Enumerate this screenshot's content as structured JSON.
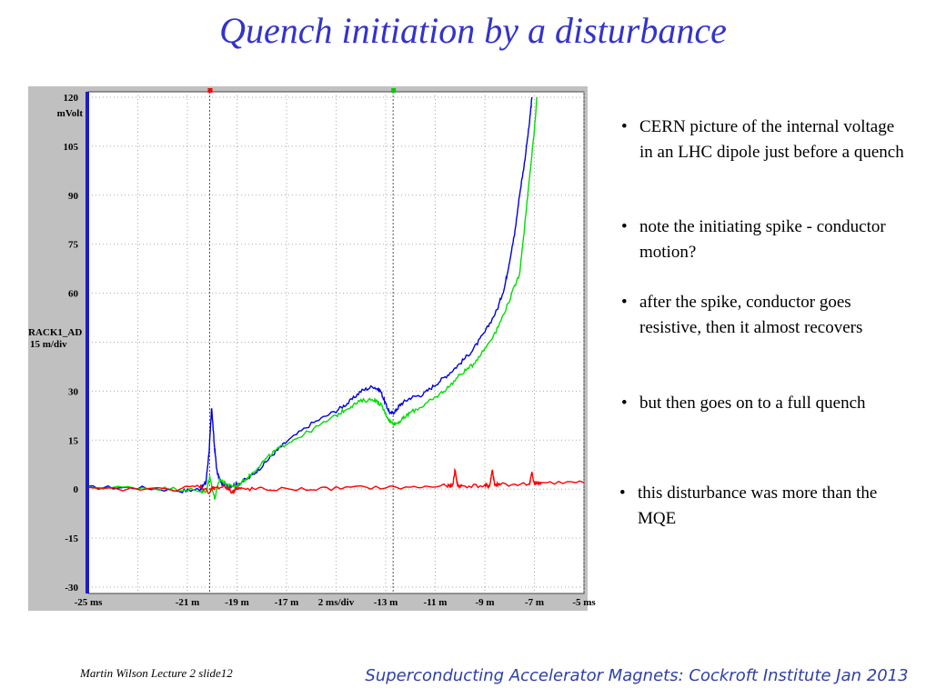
{
  "slide": {
    "title": "Quench initiation by a disturbance",
    "bullets": [
      "CERN picture of the internal voltage in an LHC dipole just before a quench",
      "note the initiating spike - conductor motion?",
      "after the spike, conductor goes resistive, then it almost recovers",
      "but then goes on to a full quench",
      "this disturbance was more than the MQE"
    ],
    "footer_left": "Martin Wilson Lecture 2 slide12",
    "footer_right": "Superconducting Accelerator Magnets:  Cockroft Institute Jan 2013"
  },
  "chart_data": {
    "type": "line",
    "title": "",
    "y_unit_label": "mVolt",
    "channel_label": "RACK1_AD",
    "scale_label": "15 m/div",
    "x_center_label": "2 ms/div",
    "ylim": [
      -30,
      120
    ],
    "xlim": [
      -25,
      -5
    ],
    "grid": true,
    "y_ticks": [
      {
        "value": 120,
        "label": "120"
      },
      {
        "value": 105,
        "label": "105"
      },
      {
        "value": 90,
        "label": "90"
      },
      {
        "value": 75,
        "label": "75"
      },
      {
        "value": 60,
        "label": "60"
      },
      {
        "value": 30,
        "label": "30"
      },
      {
        "value": 15,
        "label": "15"
      },
      {
        "value": 0,
        "label": "0"
      },
      {
        "value": -15,
        "label": "-15"
      },
      {
        "value": -30,
        "label": "-30"
      }
    ],
    "x_ticks": [
      {
        "value": -25,
        "label": "-25 ms"
      },
      {
        "value": -21,
        "label": "-21 m"
      },
      {
        "value": -19,
        "label": "-19 m"
      },
      {
        "value": -17,
        "label": "-17 m"
      },
      {
        "value": -15,
        "label": "2 ms/div"
      },
      {
        "value": -13,
        "label": "-13 m"
      },
      {
        "value": -11,
        "label": "-11 m"
      },
      {
        "value": -9,
        "label": "-9 m"
      },
      {
        "value": -7,
        "label": "-7 m"
      },
      {
        "value": -5,
        "label": "-5 ms"
      }
    ],
    "cursors": [
      {
        "x": -20.1,
        "color": "#ff0000"
      },
      {
        "x": -12.7,
        "color": "#00cc00"
      }
    ],
    "series": [
      {
        "color": "#0000dd",
        "x": [
          -25,
          -23,
          -21.2,
          -20.5,
          -20.25,
          -20.12,
          -20.02,
          -19.92,
          -19.8,
          -19.6,
          -19.3,
          -19,
          -18.5,
          -18,
          -17.5,
          -17,
          -16,
          -15,
          -14.5,
          -14,
          -13.5,
          -13.2,
          -13,
          -12.8,
          -12.6,
          -12.4,
          -12,
          -11.5,
          -11,
          -10.5,
          -10,
          -9.5,
          -9,
          -8.5,
          -8.2,
          -8,
          -7.8,
          -7.6,
          -7.4,
          -7.2,
          -7.1
        ],
        "y": [
          0.5,
          0.5,
          -0.5,
          0,
          2,
          12,
          25,
          14,
          5,
          1.5,
          1,
          1.5,
          3.5,
          7,
          11,
          14.5,
          20,
          24,
          26.5,
          30,
          31.5,
          30,
          26,
          23,
          24,
          26,
          28,
          29,
          32,
          35,
          38.5,
          42.5,
          48,
          55,
          62,
          70,
          78,
          90,
          100,
          112,
          120
        ]
      },
      {
        "color": "#00dd00",
        "x": [
          -25,
          -23,
          -21.2,
          -20.5,
          -20.25,
          -20.1,
          -19.9,
          -19.7,
          -19.5,
          -19.3,
          -19,
          -18.5,
          -18,
          -17.5,
          -17,
          -16,
          -15,
          -14.5,
          -14,
          -13.5,
          -13.2,
          -13,
          -12.8,
          -12.6,
          -12.3,
          -12,
          -11.5,
          -11,
          -10.5,
          -10,
          -9.5,
          -9,
          -8.5,
          -8,
          -7.6,
          -7.4,
          -7.2,
          -7,
          -6.9
        ],
        "y": [
          0.5,
          0.5,
          0,
          -0.5,
          -1,
          4,
          -3,
          3,
          2,
          1,
          1,
          4,
          8,
          11.5,
          14,
          18,
          22.5,
          25,
          27,
          27.5,
          26,
          23,
          20.5,
          20,
          21.5,
          23.5,
          25.5,
          28,
          31,
          35,
          38,
          43,
          49,
          58,
          66,
          80,
          95,
          110,
          120
        ]
      },
      {
        "color": "#ff0000",
        "x": [
          -25,
          -21.5,
          -20.5,
          -20.1,
          -20.0,
          -19.9,
          -19.5,
          -19.2,
          -19.0,
          -18.8,
          -18,
          -16,
          -14,
          -12,
          -10.5,
          -10.3,
          -10.2,
          -10.1,
          -9.9,
          -9.0,
          -8.8,
          -8.7,
          -8.6,
          -8.4,
          -7.2,
          -7.1,
          -7.0,
          -6.9,
          -6.7,
          -5.0
        ],
        "y": [
          0,
          0,
          1,
          -1,
          0.5,
          0,
          1,
          -1,
          0.5,
          0,
          0,
          0,
          0.5,
          0.5,
          1,
          1,
          6,
          1,
          1,
          1,
          1,
          6,
          1,
          1.5,
          1.5,
          5,
          1.5,
          2,
          2,
          2
        ]
      }
    ]
  }
}
